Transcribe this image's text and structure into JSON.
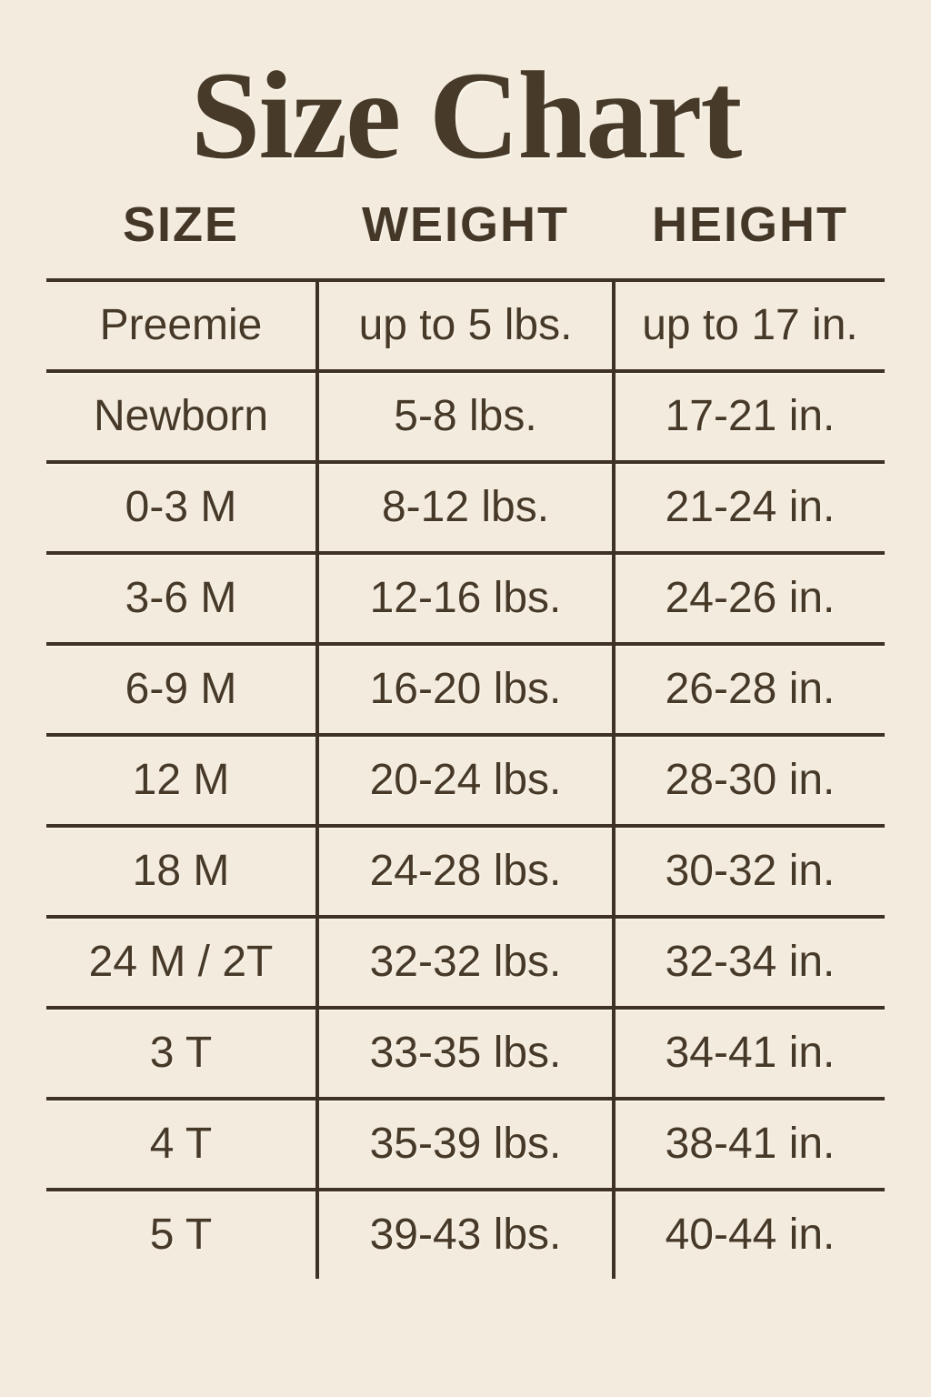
{
  "title": "Size Chart",
  "colors": {
    "background": "#f2ebde",
    "text": "#473928",
    "line": "#3e3226"
  },
  "table": {
    "headers": [
      "SIZE",
      "WEIGHT",
      "HEIGHT"
    ],
    "rows": [
      {
        "size": "Preemie",
        "weight": "up to 5 lbs.",
        "height": "up to 17 in."
      },
      {
        "size": "Newborn",
        "weight": "5-8 lbs.",
        "height": "17-21 in."
      },
      {
        "size": "0-3 M",
        "weight": "8-12 lbs.",
        "height": "21-24 in."
      },
      {
        "size": "3-6 M",
        "weight": "12-16 lbs.",
        "height": "24-26 in."
      },
      {
        "size": "6-9 M",
        "weight": "16-20 lbs.",
        "height": "26-28 in."
      },
      {
        "size": "12 M",
        "weight": "20-24 lbs.",
        "height": "28-30 in."
      },
      {
        "size": "18 M",
        "weight": "24-28 lbs.",
        "height": "30-32 in."
      },
      {
        "size": "24 M / 2T",
        "weight": "32-32 lbs.",
        "height": "32-34 in."
      },
      {
        "size": "3 T",
        "weight": "33-35 lbs.",
        "height": "34-41 in."
      },
      {
        "size": "4 T",
        "weight": "35-39 lbs.",
        "height": "38-41 in."
      },
      {
        "size": "5 T",
        "weight": "39-43 lbs.",
        "height": "40-44 in."
      }
    ]
  },
  "chart_data": {
    "type": "table",
    "title": "Size Chart",
    "columns": [
      "SIZE",
      "WEIGHT",
      "HEIGHT"
    ],
    "rows": [
      [
        "Preemie",
        "up to 5 lbs.",
        "up to 17 in."
      ],
      [
        "Newborn",
        "5-8 lbs.",
        "17-21 in."
      ],
      [
        "0-3 M",
        "8-12 lbs.",
        "21-24 in."
      ],
      [
        "3-6 M",
        "12-16 lbs.",
        "24-26 in."
      ],
      [
        "6-9 M",
        "16-20 lbs.",
        "26-28 in."
      ],
      [
        "12 M",
        "20-24 lbs.",
        "28-30 in."
      ],
      [
        "18 M",
        "24-28 lbs.",
        "30-32 in."
      ],
      [
        "24 M / 2T",
        "32-32 lbs.",
        "32-34 in."
      ],
      [
        "3 T",
        "33-35 lbs.",
        "34-41 in."
      ],
      [
        "4 T",
        "35-39 lbs.",
        "38-41 in."
      ],
      [
        "5 T",
        "39-43 lbs.",
        "40-44 in."
      ]
    ]
  }
}
